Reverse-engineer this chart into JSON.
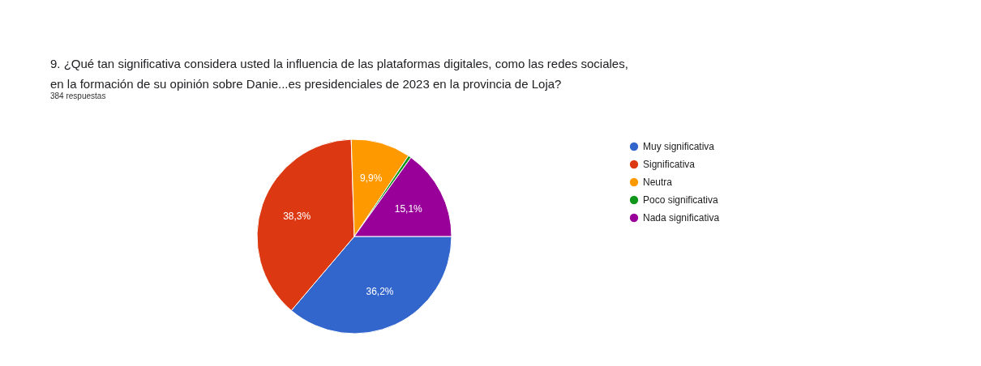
{
  "chart_data": {
    "type": "pie",
    "title": "9. ¿Qué tan significativa considera usted la influencia de las plataformas digitales, como las redes sociales, en la formación de su opinión sobre Danie...es presidenciales de 2023 en la provincia de Loja?",
    "subtitle": "384 respuestas",
    "categories": [
      "Muy significativa",
      "Significativa",
      "Neutra",
      "Poco significativa",
      "Nada significativa"
    ],
    "values": [
      36.2,
      38.3,
      9.9,
      0.5,
      15.1
    ],
    "colors": [
      "#3366cc",
      "#dc3912",
      "#ff9900",
      "#109618",
      "#990099"
    ],
    "value_labels": [
      "36,2%",
      "38,3%",
      "9,9%",
      null,
      "15,1%"
    ],
    "legend": "right"
  }
}
